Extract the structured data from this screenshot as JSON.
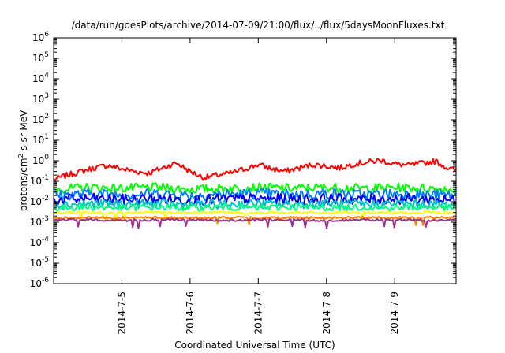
{
  "chart_data": {
    "type": "line",
    "title": "/data/run/goesPlots/archive/2014-07-09/21:00/flux/../flux/5daysMoonFluxes.txt",
    "xlabel": "Coordinated Universal Time (UTC)",
    "ylabel": {
      "base": "protons/cm",
      "sup": "2",
      "rest": "-s-sr-MeV"
    },
    "yscale": "log",
    "ylim": [
      1e-06,
      1000000.0
    ],
    "y_ticks": [
      {
        "exp": "-6"
      },
      {
        "exp": "-5"
      },
      {
        "exp": "-4"
      },
      {
        "exp": "-3"
      },
      {
        "exp": "-2"
      },
      {
        "exp": "-1"
      },
      {
        "exp": "0"
      },
      {
        "exp": "1"
      },
      {
        "exp": "2"
      },
      {
        "exp": "3"
      },
      {
        "exp": "4"
      },
      {
        "exp": "5"
      },
      {
        "exp": "6"
      }
    ],
    "xlim_days": [
      4.0,
      9.9
    ],
    "x_ticks": [
      {
        "label": "2014-7-5",
        "day": 5
      },
      {
        "label": "2014-7-6",
        "day": 6
      },
      {
        "label": "2014-7-7",
        "day": 7
      },
      {
        "label": "2014-7-8",
        "day": 8
      },
      {
        "label": "2014-7-9",
        "day": 9
      }
    ],
    "grid": false,
    "series": [
      {
        "color": "#ff0000",
        "x": [
          4.0,
          4.2,
          4.4,
          4.6,
          4.8,
          5.0,
          5.2,
          5.4,
          5.6,
          5.8,
          6.0,
          6.2,
          6.4,
          6.6,
          6.8,
          7.0,
          7.2,
          7.4,
          7.6,
          7.8,
          8.0,
          8.2,
          8.4,
          8.6,
          8.8,
          9.0,
          9.2,
          9.4,
          9.6,
          9.8,
          9.9
        ],
        "values": [
          0.12,
          0.2,
          0.3,
          0.45,
          0.6,
          0.4,
          0.3,
          0.25,
          0.45,
          0.8,
          0.3,
          0.15,
          0.2,
          0.25,
          0.4,
          0.65,
          0.4,
          0.3,
          0.45,
          0.65,
          0.55,
          0.45,
          0.7,
          0.85,
          1.05,
          0.7,
          0.6,
          0.75,
          0.95,
          0.4,
          0.35
        ]
      },
      {
        "color": "#00ff00",
        "x": [
          4.0,
          4.5,
          5.0,
          5.5,
          6.0,
          6.5,
          7.0,
          7.5,
          8.0,
          8.5,
          9.0,
          9.5,
          9.9
        ],
        "values": [
          0.04,
          0.05,
          0.045,
          0.05,
          0.04,
          0.045,
          0.05,
          0.045,
          0.05,
          0.045,
          0.05,
          0.045,
          0.04
        ]
      },
      {
        "color": "#0080ff",
        "x": [
          4.0,
          4.5,
          5.0,
          5.5,
          6.0,
          6.5,
          7.0,
          7.5,
          8.0,
          8.5,
          9.0,
          9.5,
          9.9
        ],
        "values": [
          0.02,
          0.025,
          0.022,
          0.025,
          0.02,
          0.023,
          0.025,
          0.022,
          0.025,
          0.022,
          0.025,
          0.022,
          0.02
        ]
      },
      {
        "color": "#0000ff",
        "x": [
          4.0,
          4.5,
          5.0,
          5.5,
          6.0,
          6.5,
          7.0,
          7.5,
          8.0,
          8.5,
          9.0,
          9.5,
          9.9
        ],
        "values": [
          0.012,
          0.014,
          0.013,
          0.014,
          0.012,
          0.013,
          0.014,
          0.013,
          0.014,
          0.013,
          0.014,
          0.013,
          0.012
        ]
      },
      {
        "color": "#00c0c0",
        "x": [
          4.0,
          4.5,
          5.0,
          5.5,
          6.0,
          6.5,
          7.0,
          7.5,
          8.0,
          8.5,
          9.0,
          9.5,
          9.9
        ],
        "values": [
          0.007,
          0.008,
          0.0075,
          0.008,
          0.007,
          0.0075,
          0.008,
          0.0075,
          0.008,
          0.0075,
          0.008,
          0.0075,
          0.007
        ]
      },
      {
        "color": "#00ff80",
        "x": [
          4.0,
          4.5,
          5.0,
          5.5,
          6.0,
          6.5,
          7.0,
          7.5,
          8.0,
          8.5,
          9.0,
          9.5,
          9.9
        ],
        "values": [
          0.005,
          0.0055,
          0.005,
          0.0055,
          0.005,
          0.0055,
          0.005,
          0.0055,
          0.005,
          0.0055,
          0.005,
          0.0055,
          0.005
        ]
      },
      {
        "color": "#ffff00",
        "x": [
          4.0,
          4.5,
          5.0,
          5.5,
          6.0,
          6.5,
          7.0,
          7.5,
          8.0,
          8.5,
          9.0,
          9.5,
          9.9
        ],
        "values": [
          0.0028,
          0.003,
          0.0028,
          0.003,
          0.0028,
          0.003,
          0.0028,
          0.003,
          0.0028,
          0.003,
          0.0028,
          0.003,
          0.0028
        ]
      },
      {
        "color": "#ff8000",
        "x": [
          4.0,
          4.5,
          5.0,
          5.5,
          6.0,
          6.5,
          7.0,
          7.5,
          8.0,
          8.5,
          9.0,
          9.5,
          9.9
        ],
        "values": [
          0.0016,
          0.0017,
          0.0016,
          0.0017,
          0.0016,
          0.0017,
          0.0016,
          0.0017,
          0.0016,
          0.0017,
          0.0016,
          0.0017,
          0.0016
        ]
      },
      {
        "color": "#a03090",
        "x": [
          4.0,
          4.5,
          5.0,
          5.5,
          6.0,
          6.5,
          7.0,
          7.5,
          8.0,
          8.5,
          9.0,
          9.5,
          9.9
        ],
        "values": [
          0.0013,
          0.0013,
          0.0012,
          0.0013,
          0.0013,
          0.0012,
          0.0013,
          0.0013,
          0.0012,
          0.0013,
          0.0013,
          0.0012,
          0.0013
        ]
      }
    ]
  }
}
